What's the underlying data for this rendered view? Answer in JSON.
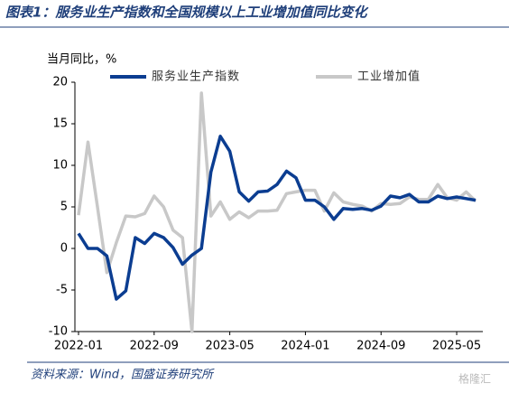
{
  "chart_data": {
    "type": "line",
    "title": "图表1：服务业生产指数和全国规模以上工业增加值同比变化",
    "y_label": "当月同比，%",
    "source": "资料来源：Wind，国盛证券研究所",
    "watermark": "格隆汇",
    "categories": [
      "2022-01",
      "2022-02",
      "2022-03",
      "2022-04",
      "2022-05",
      "2022-06",
      "2022-07",
      "2022-08",
      "2022-09",
      "2022-10",
      "2022-11",
      "2022-12",
      "2023-01",
      "2023-02",
      "2023-03",
      "2023-04",
      "2023-05",
      "2023-06",
      "2023-07",
      "2023-08",
      "2023-09",
      "2023-10",
      "2023-11",
      "2023-12",
      "2024-01",
      "2024-02",
      "2024-03",
      "2024-04",
      "2024-05",
      "2024-06",
      "2024-07",
      "2024-08",
      "2024-09",
      "2024-10",
      "2024-11",
      "2024-12",
      "2025-01",
      "2025-02",
      "2025-03",
      "2025-04",
      "2025-05",
      "2025-06",
      "2025-07"
    ],
    "x_tick_every": 8,
    "series": [
      {
        "name": "服务业生产指数",
        "color": "#0b3d91",
        "values": [
          1.8,
          0,
          0,
          -0.9,
          -6.1,
          -5.1,
          1.3,
          0.6,
          1.8,
          1.3,
          0.1,
          -1.9,
          -0.8,
          0,
          9.2,
          13.5,
          11.7,
          6.8,
          5.7,
          6.8,
          6.9,
          7.7,
          9.3,
          8.5,
          5.8,
          5.8,
          5.0,
          3.5,
          4.8,
          4.7,
          4.8,
          4.6,
          5.1,
          6.3,
          6.1,
          6.5,
          5.6,
          5.6,
          6.3,
          6.0,
          6.2,
          6.0,
          5.8
        ]
      },
      {
        "name": "工业增加值",
        "color": "#c8c8c8",
        "values": [
          4.0,
          12.8,
          5.0,
          -2.9,
          0.7,
          3.9,
          3.8,
          4.2,
          6.3,
          5.0,
          2.2,
          1.3,
          -10,
          18.7,
          3.9,
          5.6,
          3.5,
          4.4,
          3.7,
          4.5,
          4.5,
          4.6,
          6.6,
          6.8,
          7.0,
          7.0,
          4.5,
          6.7,
          5.6,
          5.3,
          5.1,
          4.5,
          5.4,
          5.3,
          5.4,
          6.2,
          5.9,
          5.9,
          7.7,
          6.1,
          5.8,
          6.8,
          5.7
        ]
      }
    ],
    "ylim": [
      -10,
      20
    ],
    "yticks": [
      -10,
      -5,
      0,
      5,
      10,
      15,
      20
    ],
    "grid": false
  }
}
